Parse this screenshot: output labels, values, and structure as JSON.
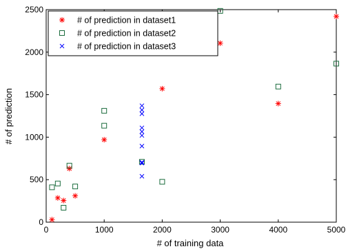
{
  "chart_data": {
    "type": "scatter",
    "title": "",
    "xlabel": "# of training data",
    "ylabel": "# of prediction",
    "xlim": [
      0,
      5000
    ],
    "ylim": [
      0,
      2500
    ],
    "xticks": [
      0,
      1000,
      2000,
      3000,
      4000,
      5000
    ],
    "yticks": [
      0,
      500,
      1000,
      1500,
      2000,
      2500
    ],
    "xtick_labels": [
      "0",
      "1000",
      "2000",
      "3000",
      "4000",
      "5000"
    ],
    "ytick_labels": [
      "0",
      "500",
      "1000",
      "1500",
      "2000",
      "2500"
    ],
    "grid": false,
    "legend_position": "top-left",
    "series": [
      {
        "name": "# of prediction in dataset1",
        "marker": "asterisk",
        "color": "#ff0000",
        "points": [
          [
            100,
            30
          ],
          [
            200,
            285
          ],
          [
            300,
            255
          ],
          [
            400,
            630
          ],
          [
            500,
            310
          ],
          [
            1000,
            970
          ],
          [
            2000,
            1570
          ],
          [
            3000,
            2105
          ],
          [
            4000,
            1395
          ],
          [
            5000,
            2420
          ]
        ]
      },
      {
        "name": "# of prediction in dataset2",
        "marker": "square",
        "color": "#1a6b3c",
        "points": [
          [
            100,
            410
          ],
          [
            200,
            455
          ],
          [
            300,
            170
          ],
          [
            400,
            665
          ],
          [
            500,
            420
          ],
          [
            1000,
            1310
          ],
          [
            1000,
            1135
          ],
          [
            1650,
            710
          ],
          [
            2000,
            475
          ],
          [
            3000,
            2485
          ],
          [
            4000,
            1595
          ],
          [
            5000,
            1865
          ]
        ]
      },
      {
        "name": "# of prediction in dataset3",
        "marker": "x",
        "color": "#0000ff",
        "points": [
          [
            1650,
            1370
          ],
          [
            1650,
            1320
          ],
          [
            1650,
            1275
          ],
          [
            1650,
            1110
          ],
          [
            1650,
            1065
          ],
          [
            1650,
            1020
          ],
          [
            1650,
            895
          ],
          [
            1650,
            705
          ],
          [
            1650,
            695
          ],
          [
            1650,
            540
          ]
        ]
      }
    ]
  }
}
